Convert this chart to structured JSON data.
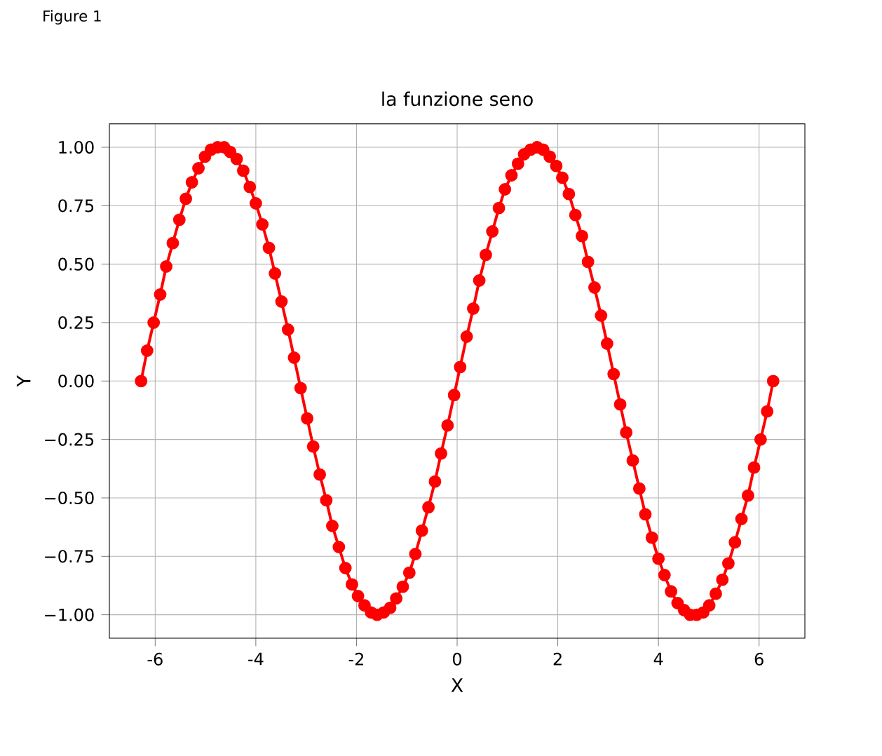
{
  "chart_data": {
    "type": "line",
    "title": "la funzione seno",
    "xlabel": "X",
    "ylabel": "Y",
    "annotations": [
      "Figure 1"
    ],
    "series": [
      {
        "color": "#ff0000",
        "x": [
          -6.28,
          -6.16,
          -6.03,
          -5.9,
          -5.78,
          -5.65,
          -5.52,
          -5.39,
          -5.27,
          -5.14,
          -5.01,
          -4.89,
          -4.76,
          -4.63,
          -4.51,
          -4.38,
          -4.25,
          -4.12,
          -4.0,
          -3.87,
          -3.74,
          -3.62,
          -3.49,
          -3.36,
          -3.24,
          -3.11,
          -2.98,
          -2.86,
          -2.73,
          -2.6,
          -2.48,
          -2.35,
          -2.22,
          -2.09,
          -1.97,
          -1.84,
          -1.71,
          -1.59,
          -1.46,
          -1.33,
          -1.21,
          -1.08,
          -0.95,
          -0.83,
          -0.7,
          -0.57,
          -0.44,
          -0.32,
          -0.19,
          -0.06,
          0.06,
          0.19,
          0.32,
          0.44,
          0.57,
          0.7,
          0.83,
          0.95,
          1.08,
          1.21,
          1.33,
          1.46,
          1.59,
          1.71,
          1.84,
          1.97,
          2.09,
          2.22,
          2.35,
          2.48,
          2.6,
          2.73,
          2.86,
          2.98,
          3.11,
          3.24,
          3.36,
          3.49,
          3.62,
          3.74,
          3.87,
          4.0,
          4.12,
          4.25,
          4.38,
          4.51,
          4.63,
          4.76,
          4.89,
          5.01,
          5.14,
          5.27,
          5.39,
          5.52,
          5.65,
          5.78,
          5.9,
          6.03,
          6.16,
          6.28
        ],
        "values": [
          0,
          0.13,
          0.25,
          0.37,
          0.49,
          0.59,
          0.69,
          0.78,
          0.85,
          0.91,
          0.96,
          0.99,
          1.0,
          1.0,
          0.98,
          0.95,
          0.9,
          0.83,
          0.76,
          0.67,
          0.57,
          0.46,
          0.34,
          0.22,
          0.1,
          -0.03,
          -0.16,
          -0.28,
          -0.4,
          -0.51,
          -0.62,
          -0.71,
          -0.8,
          -0.87,
          -0.92,
          -0.96,
          -0.99,
          -1.0,
          -0.99,
          -0.97,
          -0.93,
          -0.88,
          -0.82,
          -0.74,
          -0.64,
          -0.54,
          -0.43,
          -0.31,
          -0.19,
          -0.06,
          0.06,
          0.19,
          0.31,
          0.43,
          0.54,
          0.64,
          0.74,
          0.82,
          0.88,
          0.93,
          0.97,
          0.99,
          1.0,
          0.99,
          0.96,
          0.92,
          0.87,
          0.8,
          0.71,
          0.62,
          0.51,
          0.4,
          0.28,
          0.16,
          0.03,
          -0.1,
          -0.22,
          -0.34,
          -0.46,
          -0.57,
          -0.67,
          -0.76,
          -0.83,
          -0.9,
          -0.95,
          -0.98,
          -1.0,
          -1.0,
          -0.99,
          -0.96,
          -0.91,
          -0.85,
          -0.78,
          -0.69,
          -0.59,
          -0.49,
          -0.37,
          -0.25,
          -0.13,
          0
        ]
      }
    ],
    "xlim": [
      -6.91,
      6.91
    ],
    "ylim": [
      -1.1,
      1.1
    ],
    "xticks": [
      -6,
      -4,
      -2,
      0,
      2,
      4,
      6
    ],
    "yticks": [
      {
        "value": -1,
        "label": "−1.00"
      },
      {
        "value": -0.75,
        "label": "−0.75"
      },
      {
        "value": -0.5,
        "label": "−0.50"
      },
      {
        "value": -0.25,
        "label": "−0.25"
      },
      {
        "value": 0,
        "label": "0.00"
      },
      {
        "value": 0.25,
        "label": "0.25"
      },
      {
        "value": 0.5,
        "label": "0.50"
      },
      {
        "value": 0.75,
        "label": "0.75"
      },
      {
        "value": 1,
        "label": "1.00"
      }
    ],
    "grid": true,
    "marker": "circle",
    "line_style": "solid"
  }
}
